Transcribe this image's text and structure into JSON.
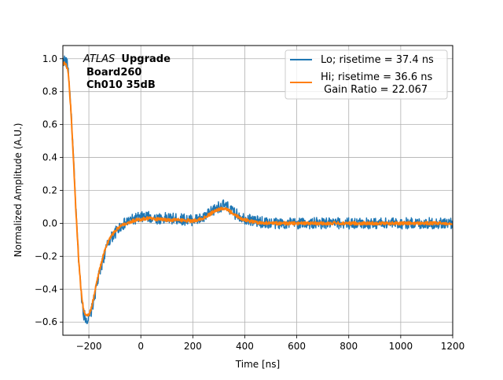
{
  "chart_data": {
    "type": "line",
    "xlabel": "Time [ns]",
    "ylabel": "Normalized Amplitude (A.U.)",
    "xlim": [
      -300,
      1200
    ],
    "ylim": [
      -0.68,
      1.08
    ],
    "xticks": [
      -200,
      0,
      200,
      400,
      600,
      800,
      1000,
      1200
    ],
    "xtick_labels": [
      "−200",
      "0",
      "200",
      "400",
      "600",
      "800",
      "1000",
      "1200"
    ],
    "yticks": [
      -0.6,
      -0.4,
      -0.2,
      0.0,
      0.2,
      0.4,
      0.6,
      0.8,
      1.0
    ],
    "ytick_labels": [
      "−0.6",
      "−0.4",
      "−0.2",
      "0.0",
      "0.2",
      "0.4",
      "0.6",
      "0.8",
      "1.0"
    ],
    "grid": true,
    "legend_position": "top-right",
    "annotation": {
      "line1_italic": "ATLAS",
      "line1_bold": "Upgrade",
      "line2": "Board260",
      "line3": "Ch010 35dB"
    },
    "series": [
      {
        "name": "Lo; risetime = 37.4 ns",
        "color": "#1f77b4",
        "noise": 0.022,
        "x": [
          -290,
          -280,
          -270,
          -260,
          -250,
          -240,
          -230,
          -220,
          -210,
          -200,
          -190,
          -180,
          -170,
          -160,
          -150,
          -140,
          -130,
          -120,
          -110,
          -100,
          -90,
          -80,
          -70,
          -60,
          -50,
          -40,
          -30,
          -20,
          0,
          20,
          40,
          60,
          80,
          100,
          150,
          200,
          240,
          280,
          300,
          320,
          340,
          360,
          400,
          450,
          500,
          550,
          600,
          700,
          800,
          900,
          1000,
          1100,
          1200
        ],
        "y": [
          0.99,
          0.95,
          0.72,
          0.42,
          0.08,
          -0.2,
          -0.42,
          -0.55,
          -0.58,
          -0.58,
          -0.53,
          -0.46,
          -0.38,
          -0.31,
          -0.25,
          -0.19,
          -0.14,
          -0.1,
          -0.08,
          -0.06,
          -0.04,
          -0.02,
          -0.01,
          0.0,
          0.01,
          0.02,
          0.02,
          0.03,
          0.035,
          0.04,
          0.035,
          0.03,
          0.03,
          0.03,
          0.025,
          0.02,
          0.03,
          0.08,
          0.1,
          0.11,
          0.09,
          0.06,
          0.03,
          0.01,
          0.0,
          0.0,
          0.0,
          0.0,
          0.0,
          0.0,
          0.0,
          0.0,
          0.0
        ]
      },
      {
        "name": "Hi; risetime = 36.6 ns\n Gain Ratio = 22.067",
        "color": "#ff7f0e",
        "noise": 0.006,
        "x": [
          -290,
          -280,
          -270,
          -260,
          -250,
          -240,
          -230,
          -220,
          -210,
          -200,
          -190,
          -180,
          -170,
          -160,
          -150,
          -140,
          -130,
          -120,
          -110,
          -100,
          -90,
          -80,
          -70,
          -60,
          -50,
          -40,
          -30,
          -20,
          0,
          20,
          40,
          60,
          80,
          100,
          150,
          200,
          240,
          280,
          300,
          320,
          340,
          360,
          400,
          450,
          500,
          550,
          600,
          700,
          800,
          900,
          1000,
          1100,
          1200
        ],
        "y": [
          0.97,
          0.93,
          0.71,
          0.41,
          0.08,
          -0.2,
          -0.41,
          -0.53,
          -0.56,
          -0.56,
          -0.51,
          -0.44,
          -0.36,
          -0.29,
          -0.23,
          -0.17,
          -0.13,
          -0.09,
          -0.07,
          -0.05,
          -0.03,
          -0.02,
          -0.01,
          0.0,
          0.005,
          0.01,
          0.015,
          0.02,
          0.025,
          0.03,
          0.03,
          0.025,
          0.025,
          0.02,
          0.02,
          0.015,
          0.03,
          0.07,
          0.085,
          0.09,
          0.075,
          0.05,
          0.02,
          0.005,
          0.0,
          0.0,
          0.0,
          0.0,
          0.0,
          0.0,
          0.0,
          0.0,
          0.0
        ]
      }
    ]
  }
}
